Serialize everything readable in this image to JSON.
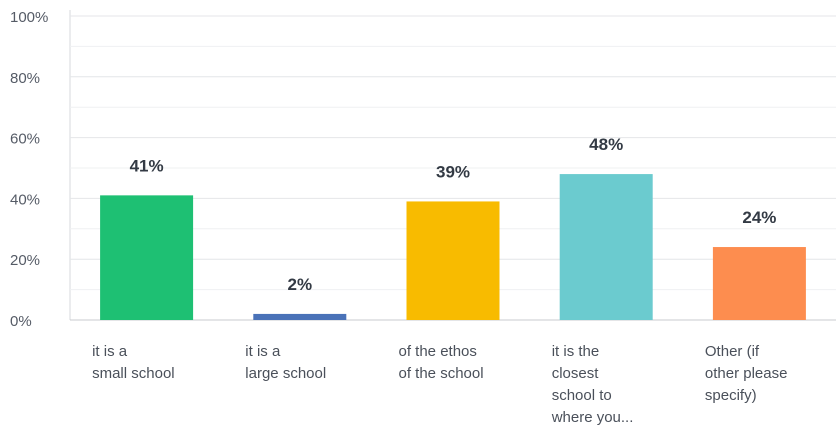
{
  "chart_data": {
    "type": "bar",
    "categories": [
      [
        "it is a",
        "small school"
      ],
      [
        "it is a",
        "large school"
      ],
      [
        "of the ethos",
        "of the school"
      ],
      [
        "it is the",
        "closest",
        "school to",
        "where you..."
      ],
      [
        "Other (if",
        "other please",
        "specify)"
      ]
    ],
    "values": [
      41,
      2,
      39,
      48,
      24
    ],
    "data_labels": [
      "41%",
      "2%",
      "39%",
      "48%",
      "24%"
    ],
    "colors": [
      "#1ec073",
      "#4a72b8",
      "#f8bb00",
      "#6bcbcf",
      "#fd8d4f"
    ],
    "yticks": [
      {
        "value": 0,
        "label": "0%"
      },
      {
        "value": 20,
        "label": "20%"
      },
      {
        "value": 40,
        "label": "40%"
      },
      {
        "value": 60,
        "label": "60%"
      },
      {
        "value": 80,
        "label": "80%"
      },
      {
        "value": 100,
        "label": "100%"
      }
    ],
    "ylim": [
      0,
      100
    ],
    "grid": true,
    "title": "",
    "xlabel": "",
    "ylabel": ""
  }
}
